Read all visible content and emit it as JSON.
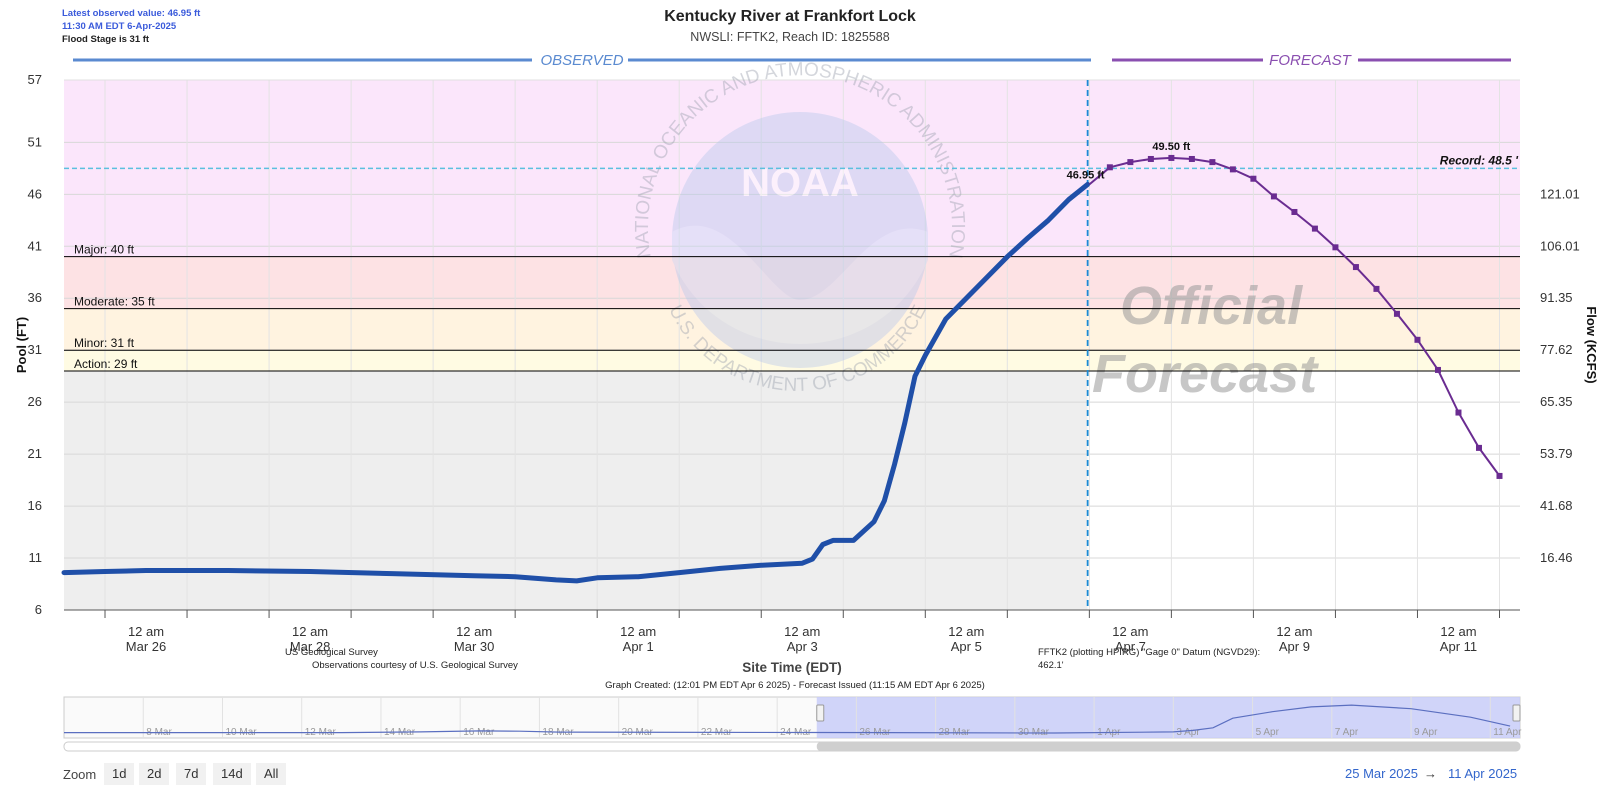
{
  "header": {
    "latest_value": "Latest observed value: 46.95 ft",
    "latest_time": "11:30 AM EDT 6-Apr-2025",
    "flood_stage": "Flood Stage is 31 ft",
    "title": "Kentucky River at Frankfort Lock",
    "subtitle": "NWSLI: FFTK2, Reach ID: 1825588"
  },
  "sections": {
    "observed": "OBSERVED",
    "forecast": "FORECAST"
  },
  "watermark": {
    "official": "Official",
    "forecast": "Forecast",
    "noaa": "NOAA",
    "arc_top": "NATIONAL OCEANIC AND ATMOSPHERIC ADMINISTRATION",
    "arc_bottom": "U.S. DEPARTMENT OF COMMERCE"
  },
  "footer": {
    "usgs": "US Geological Survey",
    "usgs_courtesy": "Observations courtesy of U.S. Geological Survey",
    "datum_line1": "FFTK2 (plotting HPIRG) \"Gage 0\" Datum (NGVD29):",
    "datum_line2": "462.1'",
    "created": "Graph Created: (12:01 PM EDT Apr 6 2025) - Forecast Issued (11:15 AM EDT Apr 6 2025)"
  },
  "controls": {
    "zoom_label": "Zoom",
    "zoom_buttons": [
      "1d",
      "2d",
      "7d",
      "14d",
      "All"
    ],
    "range_from": "25 Mar 2025",
    "range_arrow": "→",
    "range_to": "11 Apr 2025"
  },
  "colors": {
    "observed": "#1f4fa8",
    "forecast": "#6a2c91",
    "record": "#5bc0de",
    "zone_above_major": "#fbe6fb",
    "zone_major": "#fde2e4",
    "zone_moderate": "#fff3e0",
    "zone_minor": "#fffbe3",
    "zone_below": "#eeeeee"
  },
  "chart_data": {
    "type": "line",
    "xlabel": "Site Time (EDT)",
    "ylabel": "Pool (FT)",
    "y2label": "Flow (KCFS)",
    "ylim": [
      6,
      57
    ],
    "yticks": [
      6,
      11,
      16,
      21,
      26,
      31,
      36,
      41,
      46,
      51,
      57
    ],
    "xlim": [
      "2025-03-25T00:00",
      "2025-04-11T18:00"
    ],
    "x_ticks": [
      {
        "t": "2025-03-26T00:00",
        "top": "12 am",
        "bottom": "Mar 26"
      },
      {
        "t": "2025-03-28T00:00",
        "top": "12 am",
        "bottom": "Mar 28"
      },
      {
        "t": "2025-03-30T00:00",
        "top": "12 am",
        "bottom": "Mar 30"
      },
      {
        "t": "2025-04-01T00:00",
        "top": "12 am",
        "bottom": "Apr 1"
      },
      {
        "t": "2025-04-03T00:00",
        "top": "12 am",
        "bottom": "Apr 3"
      },
      {
        "t": "2025-04-05T00:00",
        "top": "12 am",
        "bottom": "Apr 5"
      },
      {
        "t": "2025-04-07T00:00",
        "top": "12 am",
        "bottom": "Apr 7"
      },
      {
        "t": "2025-04-09T00:00",
        "top": "12 am",
        "bottom": "Apr 9"
      },
      {
        "t": "2025-04-11T00:00",
        "top": "12 am",
        "bottom": "Apr 11"
      }
    ],
    "flow_ticks": [
      {
        "stage": 11,
        "label": "16.46"
      },
      {
        "stage": 16,
        "label": "41.68"
      },
      {
        "stage": 21,
        "label": "53.79"
      },
      {
        "stage": 26,
        "label": "65.35"
      },
      {
        "stage": 31,
        "label": "77.62"
      },
      {
        "stage": 36,
        "label": "91.35"
      },
      {
        "stage": 41,
        "label": "106.01"
      },
      {
        "stage": 46,
        "label": "121.01"
      }
    ],
    "thresholds": [
      {
        "name": "Major",
        "label": "Major: 40 ft",
        "value": 40
      },
      {
        "name": "Moderate",
        "label": "Moderate: 35 ft",
        "value": 35
      },
      {
        "name": "Minor",
        "label": "Minor: 31 ft",
        "value": 31
      },
      {
        "name": "Action",
        "label": "Action: 29 ft",
        "value": 29
      }
    ],
    "record": {
      "label": "Record: 48.5 '",
      "value": 48.5
    },
    "forecast_start": "2025-04-06T11:30",
    "observed": [
      [
        "2025-03-25T00:00",
        9.6
      ],
      [
        "2025-03-25T12:00",
        9.7
      ],
      [
        "2025-03-26T00:00",
        9.8
      ],
      [
        "2025-03-27T00:00",
        9.8
      ],
      [
        "2025-03-28T00:00",
        9.7
      ],
      [
        "2025-03-29T00:00",
        9.5
      ],
      [
        "2025-03-30T00:00",
        9.3
      ],
      [
        "2025-03-30T12:00",
        9.2
      ],
      [
        "2025-03-31T00:00",
        8.9
      ],
      [
        "2025-03-31T06:00",
        8.8
      ],
      [
        "2025-03-31T12:00",
        9.1
      ],
      [
        "2025-04-01T00:00",
        9.2
      ],
      [
        "2025-04-01T12:00",
        9.6
      ],
      [
        "2025-04-02T00:00",
        10.0
      ],
      [
        "2025-04-02T12:00",
        10.3
      ],
      [
        "2025-04-03T00:00",
        10.5
      ],
      [
        "2025-04-03T03:00",
        10.9
      ],
      [
        "2025-04-03T06:00",
        12.3
      ],
      [
        "2025-04-03T09:00",
        12.7
      ],
      [
        "2025-04-03T15:00",
        12.7
      ],
      [
        "2025-04-03T21:00",
        14.5
      ],
      [
        "2025-04-04T00:00",
        16.5
      ],
      [
        "2025-04-04T03:00",
        20.0
      ],
      [
        "2025-04-04T06:00",
        24.0
      ],
      [
        "2025-04-04T09:00",
        28.5
      ],
      [
        "2025-04-04T12:00",
        30.5
      ],
      [
        "2025-04-04T18:00",
        34.0
      ],
      [
        "2025-04-05T00:00",
        36.0
      ],
      [
        "2025-04-05T06:00",
        38.0
      ],
      [
        "2025-04-05T12:00",
        40.0
      ],
      [
        "2025-04-05T18:00",
        41.8
      ],
      [
        "2025-04-06T00:00",
        43.5
      ],
      [
        "2025-04-06T06:00",
        45.5
      ],
      [
        "2025-04-06T11:30",
        46.95
      ]
    ],
    "forecast": [
      [
        "2025-04-06T12:00",
        46.95
      ],
      [
        "2025-04-06T18:00",
        48.6
      ],
      [
        "2025-04-07T00:00",
        49.1
      ],
      [
        "2025-04-07T06:00",
        49.4
      ],
      [
        "2025-04-07T12:00",
        49.5
      ],
      [
        "2025-04-07T18:00",
        49.4
      ],
      [
        "2025-04-08T00:00",
        49.1
      ],
      [
        "2025-04-08T06:00",
        48.4
      ],
      [
        "2025-04-08T12:00",
        47.5
      ],
      [
        "2025-04-08T18:00",
        45.8
      ],
      [
        "2025-04-09T00:00",
        44.3
      ],
      [
        "2025-04-09T06:00",
        42.7
      ],
      [
        "2025-04-09T12:00",
        40.9
      ],
      [
        "2025-04-09T18:00",
        39.0
      ],
      [
        "2025-04-10T00:00",
        36.9
      ],
      [
        "2025-04-10T06:00",
        34.5
      ],
      [
        "2025-04-10T12:00",
        32.0
      ],
      [
        "2025-04-10T18:00",
        29.1
      ],
      [
        "2025-04-11T00:00",
        25.0
      ],
      [
        "2025-04-11T06:00",
        21.6
      ],
      [
        "2025-04-11T12:00",
        18.9
      ]
    ],
    "annotations": [
      {
        "t": "2025-04-06T11:30",
        "value": 46.95,
        "label": "46.95 ft"
      },
      {
        "t": "2025-04-07T12:00",
        "value": 49.5,
        "label": "49.50 ft"
      }
    ],
    "navigator": {
      "xlim": [
        "2025-03-06T00:00",
        "2025-04-11T18:00"
      ],
      "labels": [
        {
          "t": "2025-03-08T00:00",
          "label": "8 Mar"
        },
        {
          "t": "2025-03-10T00:00",
          "label": "10 Mar"
        },
        {
          "t": "2025-03-12T00:00",
          "label": "12 Mar"
        },
        {
          "t": "2025-03-14T00:00",
          "label": "14 Mar"
        },
        {
          "t": "2025-03-16T00:00",
          "label": "16 Mar"
        },
        {
          "t": "2025-03-18T00:00",
          "label": "18 Mar"
        },
        {
          "t": "2025-03-20T00:00",
          "label": "20 Mar"
        },
        {
          "t": "2025-03-22T00:00",
          "label": "22 Mar"
        },
        {
          "t": "2025-03-24T00:00",
          "label": "24 Mar"
        },
        {
          "t": "2025-03-26T00:00",
          "label": "26 Mar"
        },
        {
          "t": "2025-03-28T00:00",
          "label": "28 Mar"
        },
        {
          "t": "2025-03-30T00:00",
          "label": "30 Mar"
        },
        {
          "t": "2025-04-01T00:00",
          "label": "1 Apr"
        },
        {
          "t": "2025-04-03T00:00",
          "label": "3 Apr"
        },
        {
          "t": "2025-04-05T00:00",
          "label": "5 Apr"
        },
        {
          "t": "2025-04-07T00:00",
          "label": "7 Apr"
        },
        {
          "t": "2025-04-09T00:00",
          "label": "9 Apr"
        },
        {
          "t": "2025-04-11T00:00",
          "label": "11 Apr"
        }
      ],
      "selected": [
        "2025-03-25T00:00",
        "2025-04-11T18:00"
      ],
      "series": [
        [
          "2025-03-06T00:00",
          9.5
        ],
        [
          "2025-03-13T00:00",
          9.5
        ],
        [
          "2025-03-15T00:00",
          10.5
        ],
        [
          "2025-03-16T12:00",
          12.0
        ],
        [
          "2025-03-17T12:00",
          11.5
        ],
        [
          "2025-03-18T12:00",
          10.2
        ],
        [
          "2025-03-25T00:00",
          9.6
        ],
        [
          "2025-03-31T00:00",
          8.9
        ],
        [
          "2025-04-03T00:00",
          10.5
        ],
        [
          "2025-04-03T12:00",
          12.7
        ],
        [
          "2025-04-04T00:00",
          16.5
        ],
        [
          "2025-04-04T12:00",
          30.5
        ],
        [
          "2025-04-05T12:00",
          40.0
        ],
        [
          "2025-04-06T11:30",
          46.95
        ],
        [
          "2025-04-07T12:00",
          49.5
        ],
        [
          "2025-04-09T00:00",
          44.3
        ],
        [
          "2025-04-10T12:00",
          32.0
        ],
        [
          "2025-04-11T12:00",
          18.9
        ]
      ]
    }
  }
}
